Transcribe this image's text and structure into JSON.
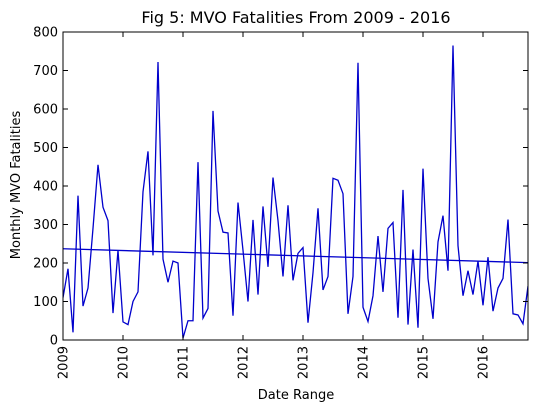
{
  "chart_data": {
    "type": "line",
    "title": "Fig 5: MVO Fatalities From 2009 - 2016",
    "xlabel": "Date Range",
    "ylabel": "Monthly MVO Fatalities",
    "x_ticks": [
      "2009",
      "2010",
      "2011",
      "2012",
      "2013",
      "2014",
      "2015",
      "2016"
    ],
    "x_tick_values": [
      2009,
      2010,
      2011,
      2012,
      2013,
      2014,
      2015,
      2016
    ],
    "xlim": [
      2009,
      2016.75
    ],
    "y_ticks": [
      "0",
      "100",
      "200",
      "300",
      "400",
      "500",
      "600",
      "700",
      "800"
    ],
    "ylim": [
      0,
      800
    ],
    "grid": false,
    "legend": "none",
    "series": [
      {
        "color": "#0000cc",
        "x_start": 2009,
        "x_step_months": 1,
        "values": [
          110,
          185,
          20,
          375,
          88,
          135,
          290,
          455,
          345,
          310,
          70,
          233,
          47,
          40,
          100,
          125,
          385,
          490,
          220,
          722,
          210,
          150,
          205,
          200,
          5,
          50,
          50,
          462,
          57,
          82,
          595,
          335,
          280,
          278,
          63,
          357,
          233,
          100,
          312,
          118,
          347,
          190,
          422,
          310,
          165,
          350,
          155,
          225,
          240,
          45,
          175,
          342,
          130,
          165,
          420,
          415,
          380,
          68,
          165,
          720,
          85,
          48,
          115,
          270,
          125,
          290,
          305,
          58,
          390,
          40,
          235,
          32,
          445,
          160,
          55,
          255,
          323,
          180,
          765,
          245,
          115,
          180,
          118,
          205,
          90,
          215,
          75,
          135,
          160,
          313,
          68,
          65,
          42,
          140
        ]
      },
      {
        "type": "trend",
        "color": "#0000cc",
        "x": [
          2009,
          2016.75
        ],
        "y": [
          237,
          201
        ]
      }
    ]
  }
}
